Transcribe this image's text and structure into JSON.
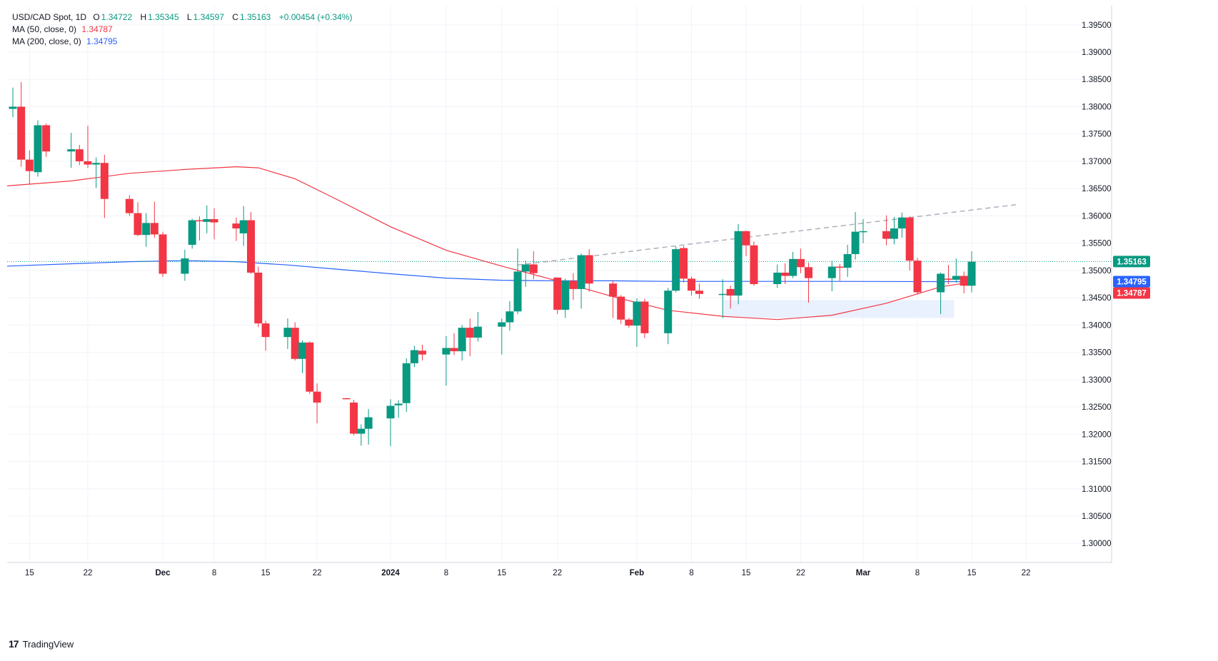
{
  "legend": {
    "symbol": "USD/CAD Spot, 1D",
    "o_label": "O",
    "o_value": "1.34722",
    "h_label": "H",
    "h_value": "1.35345",
    "l_label": "L",
    "l_value": "1.34597",
    "c_label": "C",
    "c_value": "1.35163",
    "change": "+0.00454 (+0.34%)",
    "ma50": {
      "label": "MA (50, close, 0)",
      "value": "1.34787",
      "color": "#f23645"
    },
    "ma200": {
      "label": "MA (200, close, 0)",
      "value": "1.34795",
      "color": "#2962ff"
    }
  },
  "price_tags": {
    "last": {
      "value": "1.35163",
      "color": "#089981"
    },
    "ma200": {
      "value": "1.34795",
      "color": "#2962ff"
    },
    "ma50": {
      "value": "1.34787",
      "color": "#f23645"
    }
  },
  "branding": "TradingView",
  "chart_data": {
    "type": "candlestick",
    "ylim": [
      1.2965,
      1.3985
    ],
    "y_ticks": [
      "1.30000",
      "1.30500",
      "1.31000",
      "1.31500",
      "1.32000",
      "1.32500",
      "1.33000",
      "1.33500",
      "1.34000",
      "1.34500",
      "1.35000",
      "1.35500",
      "1.36000",
      "1.36500",
      "1.37000",
      "1.37500",
      "1.38000",
      "1.38500",
      "1.39000",
      "1.39500"
    ],
    "x_ticks": [
      {
        "date": "2023-11-15",
        "label": "15"
      },
      {
        "date": "2023-11-22",
        "label": "22"
      },
      {
        "date": "2023-12-01",
        "label": "Dec"
      },
      {
        "date": "2023-12-08",
        "label": "8"
      },
      {
        "date": "2023-12-15",
        "label": "15"
      },
      {
        "date": "2023-12-22",
        "label": "22"
      },
      {
        "date": "2024-01-01",
        "label": "2024"
      },
      {
        "date": "2024-01-08",
        "label": "8"
      },
      {
        "date": "2024-01-15",
        "label": "15"
      },
      {
        "date": "2024-01-22",
        "label": "22"
      },
      {
        "date": "2024-02-01",
        "label": "Feb"
      },
      {
        "date": "2024-02-08",
        "label": "8"
      },
      {
        "date": "2024-02-15",
        "label": "15"
      },
      {
        "date": "2024-02-22",
        "label": "22"
      },
      {
        "date": "2024-03-01",
        "label": "Mar"
      },
      {
        "date": "2024-03-08",
        "label": "8"
      },
      {
        "date": "2024-03-15",
        "label": "15"
      },
      {
        "date": "2024-03-22",
        "label": "22"
      }
    ],
    "candles": [
      {
        "date": "2023-11-13",
        "o": 1.3796,
        "h": 1.3835,
        "l": 1.3781,
        "c": 1.38
      },
      {
        "date": "2023-11-14",
        "o": 1.38,
        "h": 1.3845,
        "l": 1.369,
        "c": 1.3703
      },
      {
        "date": "2023-11-15",
        "o": 1.3703,
        "h": 1.372,
        "l": 1.3658,
        "c": 1.3682
      },
      {
        "date": "2023-11-16",
        "o": 1.368,
        "h": 1.3775,
        "l": 1.3672,
        "c": 1.3766
      },
      {
        "date": "2023-11-17",
        "o": 1.3766,
        "h": 1.3769,
        "l": 1.3708,
        "c": 1.3718
      },
      {
        "date": "2023-11-20",
        "o": 1.3718,
        "h": 1.3752,
        "l": 1.3688,
        "c": 1.3722
      },
      {
        "date": "2023-11-21",
        "o": 1.3722,
        "h": 1.373,
        "l": 1.3693,
        "c": 1.37
      },
      {
        "date": "2023-11-22",
        "o": 1.37,
        "h": 1.3765,
        "l": 1.3688,
        "c": 1.3694
      },
      {
        "date": "2023-11-23",
        "o": 1.3694,
        "h": 1.3707,
        "l": 1.3651,
        "c": 1.3697
      },
      {
        "date": "2023-11-24",
        "o": 1.3697,
        "h": 1.3712,
        "l": 1.3596,
        "c": 1.3631
      },
      {
        "date": "2023-11-27",
        "o": 1.3631,
        "h": 1.3638,
        "l": 1.36,
        "c": 1.3605
      },
      {
        "date": "2023-11-28",
        "o": 1.3605,
        "h": 1.3625,
        "l": 1.3563,
        "c": 1.3565
      },
      {
        "date": "2023-11-29",
        "o": 1.3565,
        "h": 1.3605,
        "l": 1.3543,
        "c": 1.3587
      },
      {
        "date": "2023-11-30",
        "o": 1.3587,
        "h": 1.3626,
        "l": 1.356,
        "c": 1.3566
      },
      {
        "date": "2023-12-01",
        "o": 1.3566,
        "h": 1.3571,
        "l": 1.3488,
        "c": 1.3494
      },
      {
        "date": "2023-12-04",
        "o": 1.3494,
        "h": 1.3538,
        "l": 1.3481,
        "c": 1.3522
      },
      {
        "date": "2023-12-05",
        "o": 1.3547,
        "h": 1.3595,
        "l": 1.354,
        "c": 1.3592
      },
      {
        "date": "2023-12-06",
        "o": 1.3592,
        "h": 1.3599,
        "l": 1.3555,
        "c": 1.3591
      },
      {
        "date": "2023-12-07",
        "o": 1.3589,
        "h": 1.3619,
        "l": 1.3568,
        "c": 1.3594
      },
      {
        "date": "2023-12-08",
        "o": 1.3594,
        "h": 1.3614,
        "l": 1.3557,
        "c": 1.3588
      },
      {
        "date": "2023-12-11",
        "o": 1.3586,
        "h": 1.3597,
        "l": 1.3554,
        "c": 1.3577
      },
      {
        "date": "2023-12-12",
        "o": 1.3568,
        "h": 1.3618,
        "l": 1.3545,
        "c": 1.3592
      },
      {
        "date": "2023-12-13",
        "o": 1.3592,
        "h": 1.3607,
        "l": 1.3494,
        "c": 1.3496
      },
      {
        "date": "2023-12-14",
        "o": 1.3496,
        "h": 1.3507,
        "l": 1.3396,
        "c": 1.3403
      },
      {
        "date": "2023-12-15",
        "o": 1.3403,
        "h": 1.3408,
        "l": 1.3353,
        "c": 1.3378
      },
      {
        "date": "2023-12-18",
        "o": 1.3378,
        "h": 1.3412,
        "l": 1.3356,
        "c": 1.3395
      },
      {
        "date": "2023-12-19",
        "o": 1.3395,
        "h": 1.3405,
        "l": 1.3335,
        "c": 1.3338
      },
      {
        "date": "2023-12-20",
        "o": 1.3338,
        "h": 1.3372,
        "l": 1.3312,
        "c": 1.3368
      },
      {
        "date": "2023-12-21",
        "o": 1.3368,
        "h": 1.337,
        "l": 1.3274,
        "c": 1.3278
      },
      {
        "date": "2023-12-22",
        "o": 1.3278,
        "h": 1.3293,
        "l": 1.322,
        "c": 1.3258
      },
      {
        "date": "2023-12-26",
        "o": 1.3266,
        "h": 1.3266,
        "l": 1.3264,
        "c": 1.3265
      },
      {
        "date": "2023-12-27",
        "o": 1.3258,
        "h": 1.3263,
        "l": 1.3198,
        "c": 1.3201
      },
      {
        "date": "2023-12-28",
        "o": 1.3201,
        "h": 1.3218,
        "l": 1.3179,
        "c": 1.321
      },
      {
        "date": "2023-12-29",
        "o": 1.321,
        "h": 1.3246,
        "l": 1.3181,
        "c": 1.3231
      },
      {
        "date": "2024-01-01",
        "o": 1.3229,
        "h": 1.3264,
        "l": 1.3178,
        "c": 1.3252
      },
      {
        "date": "2024-01-02",
        "o": 1.3253,
        "h": 1.3262,
        "l": 1.323,
        "c": 1.3256
      },
      {
        "date": "2024-01-03",
        "o": 1.3257,
        "h": 1.3339,
        "l": 1.3241,
        "c": 1.333
      },
      {
        "date": "2024-01-04",
        "o": 1.333,
        "h": 1.3362,
        "l": 1.3323,
        "c": 1.3354
      },
      {
        "date": "2024-01-05",
        "o": 1.3353,
        "h": 1.3364,
        "l": 1.3335,
        "c": 1.3346
      },
      {
        "date": "2024-01-08",
        "o": 1.3346,
        "h": 1.338,
        "l": 1.3289,
        "c": 1.3358
      },
      {
        "date": "2024-01-09",
        "o": 1.3358,
        "h": 1.3385,
        "l": 1.3345,
        "c": 1.3352
      },
      {
        "date": "2024-01-10",
        "o": 1.3352,
        "h": 1.34,
        "l": 1.3335,
        "c": 1.3395
      },
      {
        "date": "2024-01-11",
        "o": 1.3395,
        "h": 1.3412,
        "l": 1.3343,
        "c": 1.3377
      },
      {
        "date": "2024-01-12",
        "o": 1.3377,
        "h": 1.3424,
        "l": 1.337,
        "c": 1.3397
      },
      {
        "date": "2024-01-15",
        "o": 1.3397,
        "h": 1.3412,
        "l": 1.3346,
        "c": 1.3405
      },
      {
        "date": "2024-01-16",
        "o": 1.3405,
        "h": 1.3444,
        "l": 1.339,
        "c": 1.3425
      },
      {
        "date": "2024-01-17",
        "o": 1.3425,
        "h": 1.354,
        "l": 1.342,
        "c": 1.3498
      },
      {
        "date": "2024-01-18",
        "o": 1.3498,
        "h": 1.3518,
        "l": 1.347,
        "c": 1.3511
      },
      {
        "date": "2024-01-19",
        "o": 1.3511,
        "h": 1.3535,
        "l": 1.3484,
        "c": 1.3495
      },
      {
        "date": "2024-01-22",
        "o": 1.3487,
        "h": 1.3487,
        "l": 1.342,
        "c": 1.3428
      },
      {
        "date": "2024-01-23",
        "o": 1.3428,
        "h": 1.3485,
        "l": 1.3413,
        "c": 1.3481
      },
      {
        "date": "2024-01-24",
        "o": 1.3481,
        "h": 1.3495,
        "l": 1.3446,
        "c": 1.3466
      },
      {
        "date": "2024-01-25",
        "o": 1.3466,
        "h": 1.3531,
        "l": 1.343,
        "c": 1.3528
      },
      {
        "date": "2024-01-26",
        "o": 1.3528,
        "h": 1.3539,
        "l": 1.3461,
        "c": 1.3476
      },
      {
        "date": "2024-01-29",
        "o": 1.3476,
        "h": 1.3482,
        "l": 1.3413,
        "c": 1.3452
      },
      {
        "date": "2024-01-30",
        "o": 1.3452,
        "h": 1.3455,
        "l": 1.3402,
        "c": 1.341
      },
      {
        "date": "2024-01-31",
        "o": 1.341,
        "h": 1.3413,
        "l": 1.3395,
        "c": 1.3399
      },
      {
        "date": "2024-02-01",
        "o": 1.3399,
        "h": 1.3449,
        "l": 1.336,
        "c": 1.3443
      },
      {
        "date": "2024-02-02",
        "o": 1.3443,
        "h": 1.3448,
        "l": 1.3376,
        "c": 1.3385
      },
      {
        "date": "2024-02-05",
        "o": 1.3385,
        "h": 1.3468,
        "l": 1.3365,
        "c": 1.3463
      },
      {
        "date": "2024-02-06",
        "o": 1.3463,
        "h": 1.3544,
        "l": 1.346,
        "c": 1.3539
      },
      {
        "date": "2024-02-07",
        "o": 1.3541,
        "h": 1.3545,
        "l": 1.3478,
        "c": 1.3485
      },
      {
        "date": "2024-02-08",
        "o": 1.3485,
        "h": 1.3489,
        "l": 1.3454,
        "c": 1.3463
      },
      {
        "date": "2024-02-09",
        "o": 1.3463,
        "h": 1.3476,
        "l": 1.3448,
        "c": 1.3457
      },
      {
        "date": "2024-02-12",
        "o": 1.3457,
        "h": 1.3484,
        "l": 1.3413,
        "c": 1.3457
      },
      {
        "date": "2024-02-13",
        "o": 1.3466,
        "h": 1.3472,
        "l": 1.343,
        "c": 1.3454
      },
      {
        "date": "2024-02-14",
        "o": 1.3454,
        "h": 1.3585,
        "l": 1.3438,
        "c": 1.3572
      },
      {
        "date": "2024-02-15",
        "o": 1.3572,
        "h": 1.3573,
        "l": 1.3526,
        "c": 1.3546
      },
      {
        "date": "2024-02-16",
        "o": 1.3546,
        "h": 1.3553,
        "l": 1.3472,
        "c": 1.3475
      },
      {
        "date": "2024-02-19",
        "o": 1.3475,
        "h": 1.3511,
        "l": 1.3468,
        "c": 1.3496
      },
      {
        "date": "2024-02-20",
        "o": 1.3496,
        "h": 1.3513,
        "l": 1.3475,
        "c": 1.349
      },
      {
        "date": "2024-02-21",
        "o": 1.349,
        "h": 1.3534,
        "l": 1.3486,
        "c": 1.3521
      },
      {
        "date": "2024-02-22",
        "o": 1.3521,
        "h": 1.354,
        "l": 1.3495,
        "c": 1.3506
      },
      {
        "date": "2024-02-23",
        "o": 1.3506,
        "h": 1.3514,
        "l": 1.3441,
        "c": 1.3486
      },
      {
        "date": "2024-02-26",
        "o": 1.3486,
        "h": 1.3518,
        "l": 1.3462,
        "c": 1.3507
      },
      {
        "date": "2024-02-27",
        "o": 1.3507,
        "h": 1.3512,
        "l": 1.3481,
        "c": 1.3505
      },
      {
        "date": "2024-02-28",
        "o": 1.3505,
        "h": 1.3547,
        "l": 1.3488,
        "c": 1.353
      },
      {
        "date": "2024-02-29",
        "o": 1.353,
        "h": 1.3607,
        "l": 1.352,
        "c": 1.3571
      },
      {
        "date": "2024-03-01",
        "o": 1.3571,
        "h": 1.3594,
        "l": 1.355,
        "c": 1.3572
      },
      {
        "date": "2024-03-04",
        "o": 1.3572,
        "h": 1.3601,
        "l": 1.3546,
        "c": 1.3558
      },
      {
        "date": "2024-03-05",
        "o": 1.3558,
        "h": 1.3598,
        "l": 1.3548,
        "c": 1.3577
      },
      {
        "date": "2024-03-06",
        "o": 1.3577,
        "h": 1.3606,
        "l": 1.356,
        "c": 1.3597
      },
      {
        "date": "2024-03-07",
        "o": 1.3597,
        "h": 1.3599,
        "l": 1.35,
        "c": 1.3518
      },
      {
        "date": "2024-03-08",
        "o": 1.3518,
        "h": 1.3523,
        "l": 1.3456,
        "c": 1.346
      },
      {
        "date": "2024-03-11",
        "o": 1.346,
        "h": 1.3496,
        "l": 1.342,
        "c": 1.3494
      },
      {
        "date": "2024-03-12",
        "o": 1.3485,
        "h": 1.351,
        "l": 1.3475,
        "c": 1.3483
      },
      {
        "date": "2024-03-13",
        "o": 1.3483,
        "h": 1.3522,
        "l": 1.3478,
        "c": 1.349
      },
      {
        "date": "2024-03-14",
        "o": 1.349,
        "h": 1.3498,
        "l": 1.3458,
        "c": 1.3472
      },
      {
        "date": "2024-03-15",
        "o": 1.3472,
        "h": 1.3535,
        "l": 1.346,
        "c": 1.3516
      }
    ],
    "ma50": [
      {
        "date": "2023-11-13",
        "v": 1.3655
      },
      {
        "date": "2023-11-20",
        "v": 1.3664
      },
      {
        "date": "2023-11-27",
        "v": 1.3678
      },
      {
        "date": "2023-12-04",
        "v": 1.3685
      },
      {
        "date": "2023-12-11",
        "v": 1.369
      },
      {
        "date": "2023-12-14",
        "v": 1.3688
      },
      {
        "date": "2023-12-19",
        "v": 1.3668
      },
      {
        "date": "2023-12-25",
        "v": 1.3628
      },
      {
        "date": "2024-01-01",
        "v": 1.358
      },
      {
        "date": "2024-01-08",
        "v": 1.3537
      },
      {
        "date": "2024-01-15",
        "v": 1.3508
      },
      {
        "date": "2024-01-22",
        "v": 1.3481
      },
      {
        "date": "2024-01-29",
        "v": 1.3452
      },
      {
        "date": "2024-02-05",
        "v": 1.3427
      },
      {
        "date": "2024-02-12",
        "v": 1.3416
      },
      {
        "date": "2024-02-19",
        "v": 1.341
      },
      {
        "date": "2024-02-26",
        "v": 1.3418
      },
      {
        "date": "2024-03-04",
        "v": 1.344
      },
      {
        "date": "2024-03-11",
        "v": 1.347
      },
      {
        "date": "2024-03-15",
        "v": 1.34787
      }
    ],
    "ma200": [
      {
        "date": "2023-11-13",
        "v": 1.3508
      },
      {
        "date": "2023-11-27",
        "v": 1.3516
      },
      {
        "date": "2023-12-04",
        "v": 1.3518
      },
      {
        "date": "2023-12-11",
        "v": 1.3516
      },
      {
        "date": "2023-12-18",
        "v": 1.351
      },
      {
        "date": "2023-12-25",
        "v": 1.3502
      },
      {
        "date": "2024-01-01",
        "v": 1.3494
      },
      {
        "date": "2024-01-08",
        "v": 1.3486
      },
      {
        "date": "2024-01-15",
        "v": 1.3482
      },
      {
        "date": "2024-01-22",
        "v": 1.3481
      },
      {
        "date": "2024-01-29",
        "v": 1.3481
      },
      {
        "date": "2024-02-05",
        "v": 1.348
      },
      {
        "date": "2024-02-12",
        "v": 1.348
      },
      {
        "date": "2024-02-26",
        "v": 1.348
      },
      {
        "date": "2024-03-15",
        "v": 1.34795
      }
    ],
    "trendline": {
      "from": {
        "date": "2024-01-17",
        "v": 1.351
      },
      "to": {
        "date": "2024-03-21",
        "v": 1.3621
      }
    },
    "support_zone": {
      "from_date": "2024-02-12",
      "to_date": "2024-03-12",
      "low": 1.3413,
      "high": 1.3446
    },
    "last_price": 1.35163,
    "colors": {
      "up": "#089981",
      "down": "#f23645",
      "ma50": "#f23645",
      "ma200": "#2962ff",
      "trend": "#b2b5be",
      "zone": "#e3ecfd",
      "grid": "#f0f3fa"
    },
    "grid": true
  }
}
